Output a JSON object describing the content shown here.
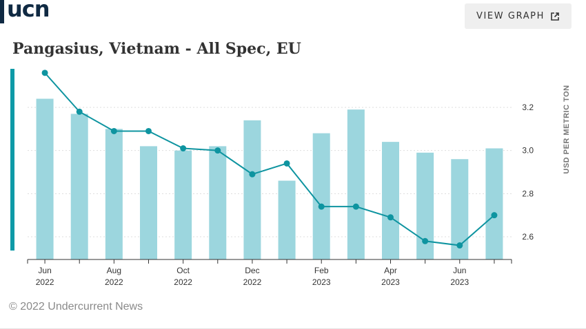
{
  "header": {
    "logo_text": "ucn",
    "view_button_label": "VIEW GRAPH",
    "view_button_icon": "external-link-icon"
  },
  "footer": {
    "copyright": "© 2022 Undercurrent News"
  },
  "colors": {
    "bar": "#9cd6de",
    "line": "#0e94a0",
    "accent": "#0e9aa7",
    "logo": "#102a43"
  },
  "chart_data": {
    "type": "bar+line",
    "title": "Pangasius, Vietnam - All Spec, EU",
    "ylabel": "USD PER METRIC TON",
    "xlabel": "",
    "ylim": [
      2.5,
      3.35
    ],
    "yticks": [
      "2.6",
      "2.8",
      "3.0",
      "3.2"
    ],
    "ytick_values": [
      2.6,
      2.8,
      3.0,
      3.2
    ],
    "grid": true,
    "categories": [
      "Jun 2022",
      "Jul 2022",
      "Aug 2022",
      "Sep 2022",
      "Oct 2022",
      "Nov 2022",
      "Dec 2022",
      "Jan 2023",
      "Feb 2023",
      "Mar 2023",
      "Apr 2023",
      "May 2023",
      "Jun 2023",
      "Jul 2023"
    ],
    "x_tick_labels": [
      {
        "index": 0,
        "month": "Jun",
        "year": "2022"
      },
      {
        "index": 2,
        "month": "Aug",
        "year": "2022"
      },
      {
        "index": 4,
        "month": "Oct",
        "year": "2022"
      },
      {
        "index": 6,
        "month": "Dec",
        "year": "2022"
      },
      {
        "index": 8,
        "month": "Feb",
        "year": "2023"
      },
      {
        "index": 10,
        "month": "Apr",
        "year": "2023"
      },
      {
        "index": 12,
        "month": "Jun",
        "year": "2023"
      }
    ],
    "series": [
      {
        "type": "bar",
        "values": [
          3.24,
          3.17,
          3.1,
          3.02,
          3.0,
          3.02,
          3.14,
          2.86,
          3.08,
          3.19,
          3.04,
          2.99,
          2.96,
          3.01
        ]
      },
      {
        "type": "line",
        "values": [
          3.36,
          3.18,
          3.09,
          3.09,
          3.01,
          3.0,
          2.89,
          2.94,
          2.74,
          2.74,
          2.69,
          2.58,
          2.56,
          2.7
        ]
      }
    ]
  }
}
